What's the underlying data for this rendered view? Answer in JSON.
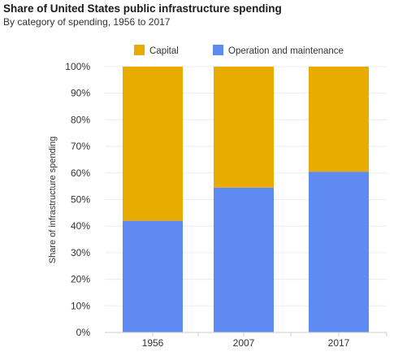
{
  "chart_data": {
    "type": "bar",
    "stacked": true,
    "title": "Share of United States public infrastructure spending",
    "subtitle": "By category of spending, 1956 to 2017",
    "xlabel": "",
    "ylabel": "Share of infrastructure spending",
    "categories": [
      "1956",
      "2007",
      "2017"
    ],
    "series": [
      {
        "name": "Operation and maintenance",
        "values": [
          42,
          54.5,
          60.5
        ],
        "color": "#5f8af2"
      },
      {
        "name": "Capital",
        "values": [
          58,
          45.5,
          39.5
        ],
        "color": "#e8ac00"
      }
    ],
    "legend_order": [
      "Capital",
      "Operation and maintenance"
    ],
    "ylim": [
      0,
      100
    ],
    "yticks": [
      "0%",
      "10%",
      "20%",
      "30%",
      "40%",
      "50%",
      "60%",
      "70%",
      "80%",
      "90%",
      "100%"
    ],
    "grid": true,
    "legend_position": "top"
  }
}
